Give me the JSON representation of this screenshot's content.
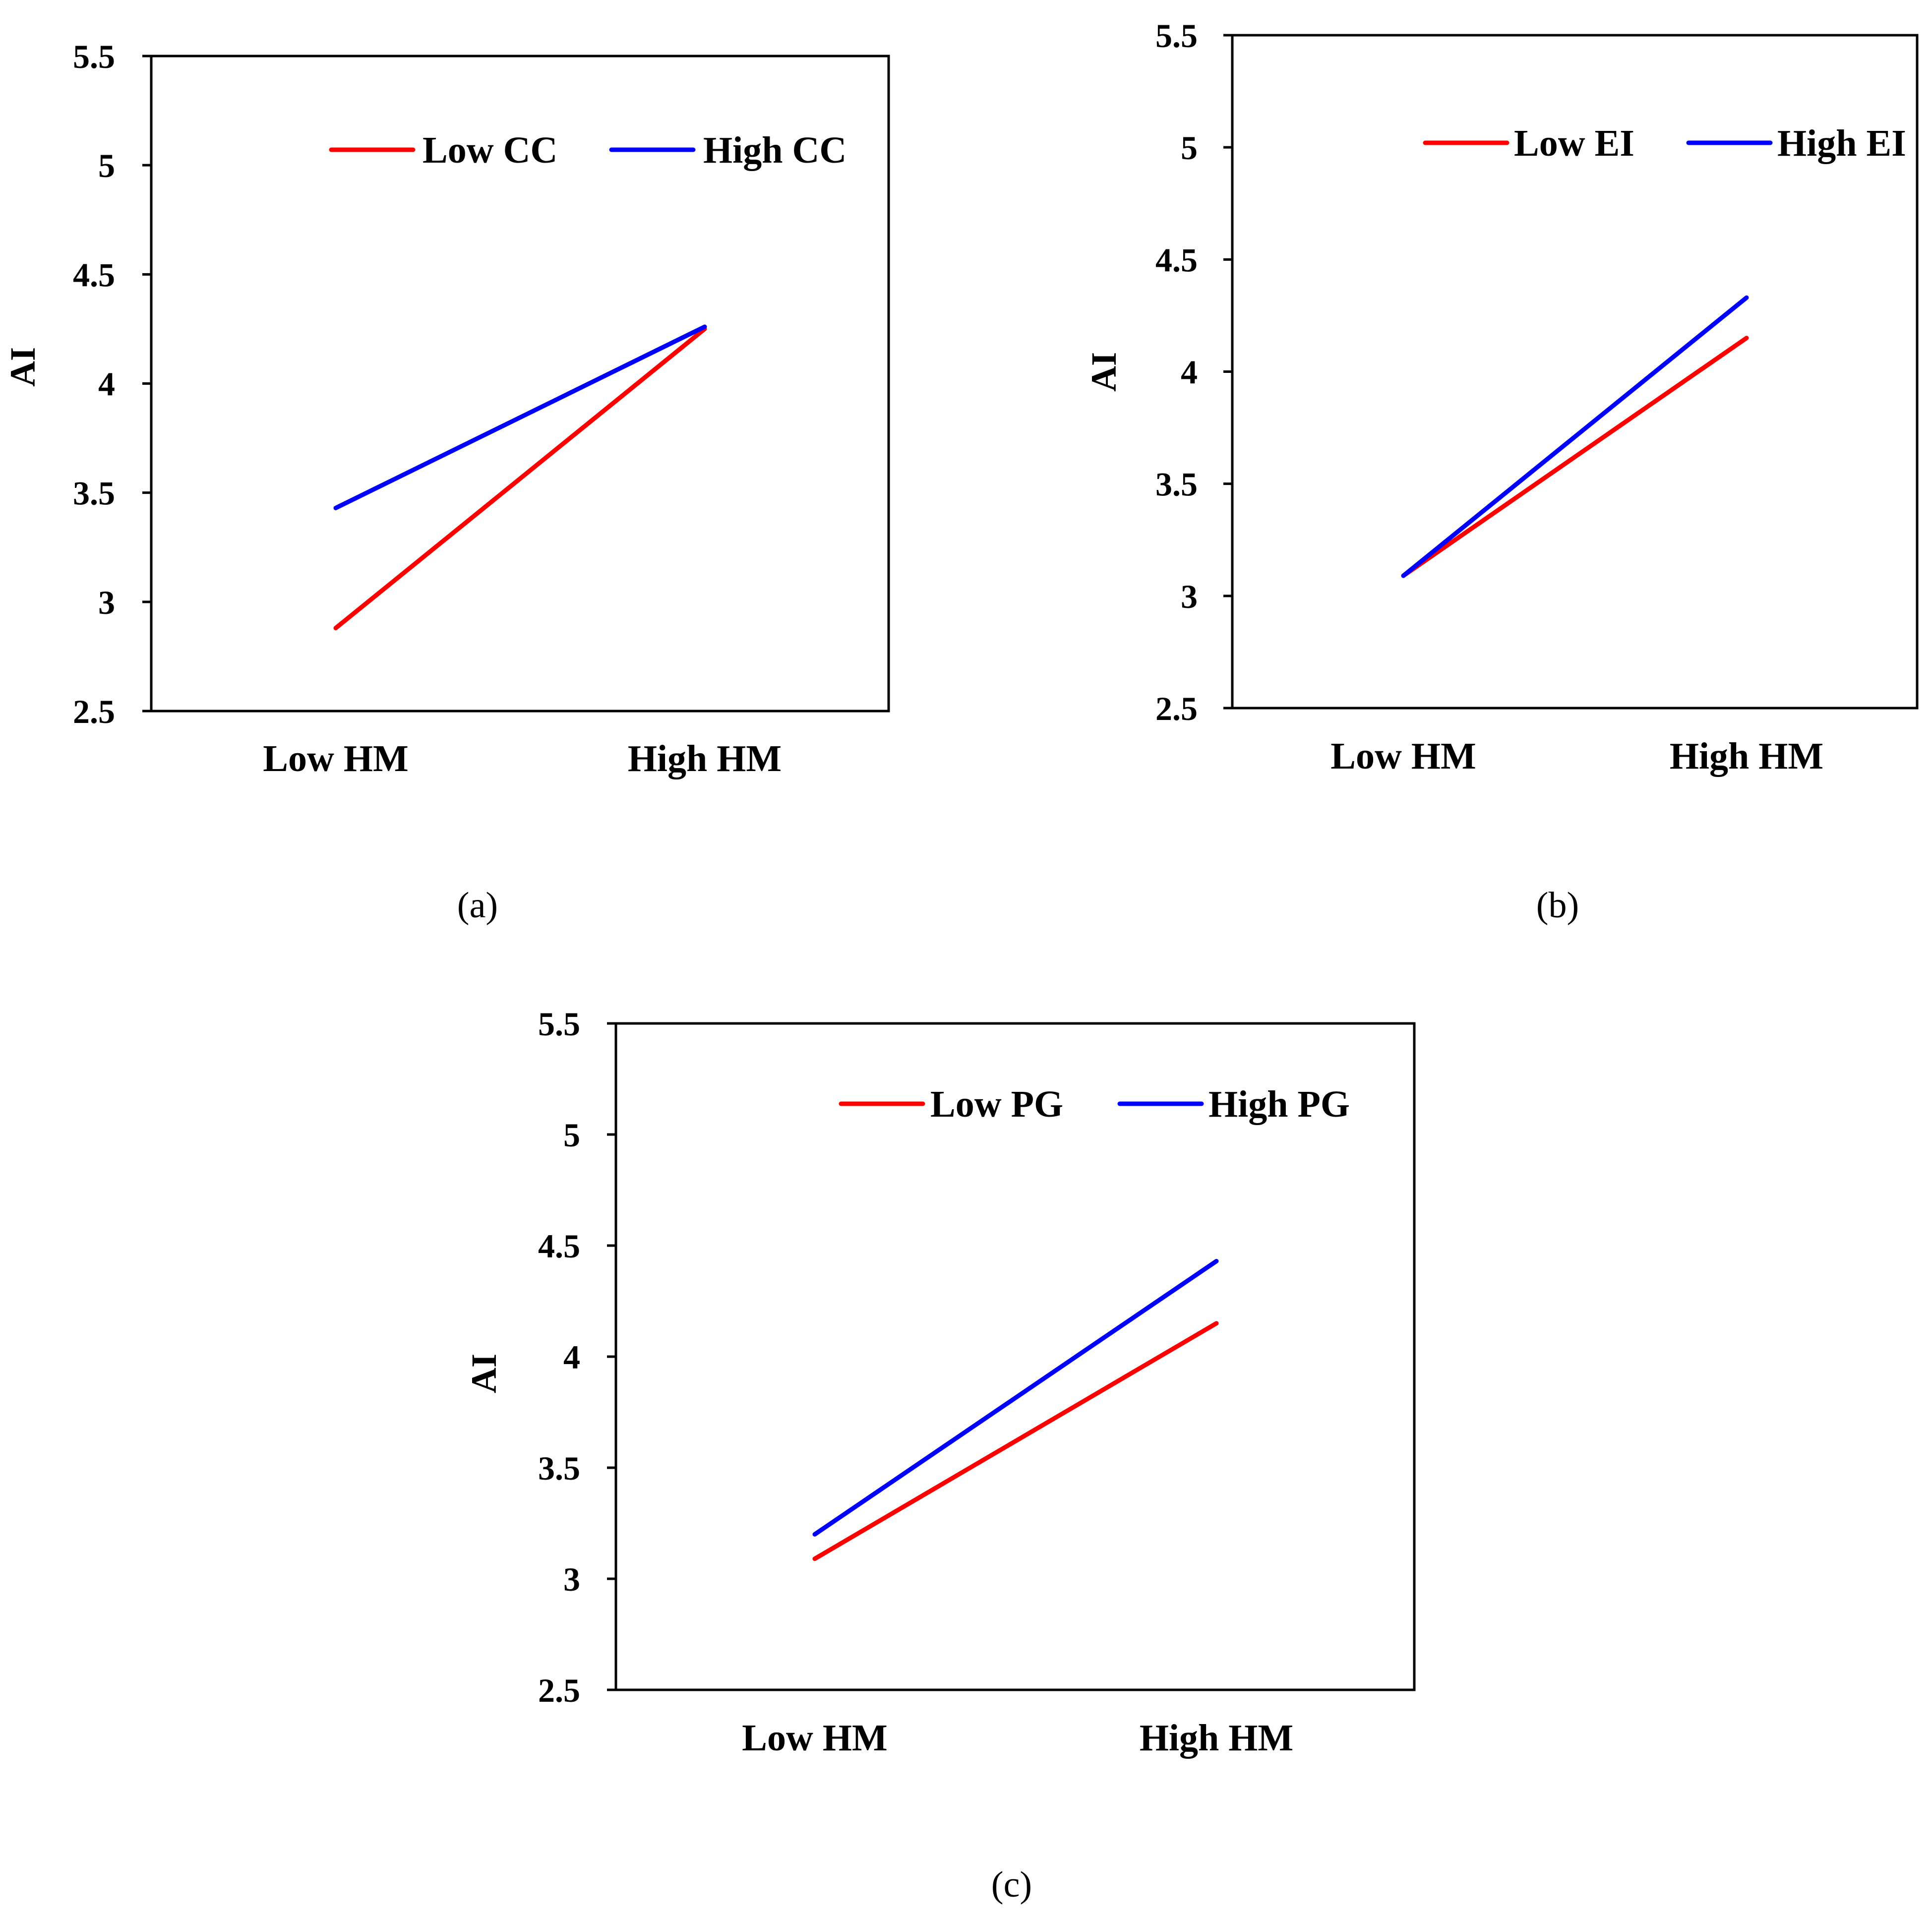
{
  "figure": {
    "panels": [
      "a",
      "b",
      "c"
    ]
  },
  "chart_data": [
    {
      "id": "a",
      "caption": "(a)",
      "type": "line",
      "title": "",
      "xlabel": "",
      "ylabel": "AI",
      "categories": [
        "Low HM",
        "High HM"
      ],
      "ylim": [
        2.5,
        5.5
      ],
      "yticks": [
        "2.5",
        "3",
        "3.5",
        "4",
        "4.5",
        "5",
        "5.5"
      ],
      "ytick_values": [
        2.5,
        3,
        3.5,
        4,
        4.5,
        5,
        5.5
      ],
      "legend_position": "top-right",
      "grid": false,
      "series": [
        {
          "name": "Low CC",
          "color": "#ff0000",
          "values": [
            2.88,
            4.25
          ]
        },
        {
          "name": "High CC",
          "color": "#0000ff",
          "values": [
            3.43,
            4.26
          ]
        }
      ]
    },
    {
      "id": "b",
      "caption": "(b)",
      "type": "line",
      "title": "",
      "xlabel": "",
      "ylabel": "AI",
      "categories": [
        "Low HM",
        "High HM"
      ],
      "ylim": [
        2.5,
        5.5
      ],
      "yticks": [
        "2.5",
        "3",
        "3.5",
        "4",
        "4.5",
        "5",
        "5.5"
      ],
      "ytick_values": [
        2.5,
        3,
        3.5,
        4,
        4.5,
        5,
        5.5
      ],
      "legend_position": "top-right",
      "grid": false,
      "series": [
        {
          "name": "Low EI",
          "color": "#ff0000",
          "values": [
            3.09,
            4.15
          ]
        },
        {
          "name": "High EI",
          "color": "#0000ff",
          "values": [
            3.09,
            4.33
          ]
        }
      ]
    },
    {
      "id": "c",
      "caption": "(c)",
      "type": "line",
      "title": "",
      "xlabel": "",
      "ylabel": "AI",
      "categories": [
        "Low HM",
        "High HM"
      ],
      "ylim": [
        2.5,
        5.5
      ],
      "yticks": [
        "2.5",
        "3",
        "3.5",
        "4",
        "4.5",
        "5",
        "5.5"
      ],
      "ytick_values": [
        2.5,
        3,
        3.5,
        4,
        4.5,
        5,
        5.5
      ],
      "legend_position": "top-right",
      "grid": false,
      "series": [
        {
          "name": "Low PG",
          "color": "#ff0000",
          "values": [
            3.09,
            4.15
          ]
        },
        {
          "name": "High PG",
          "color": "#0000ff",
          "values": [
            3.2,
            4.43
          ]
        }
      ]
    }
  ]
}
